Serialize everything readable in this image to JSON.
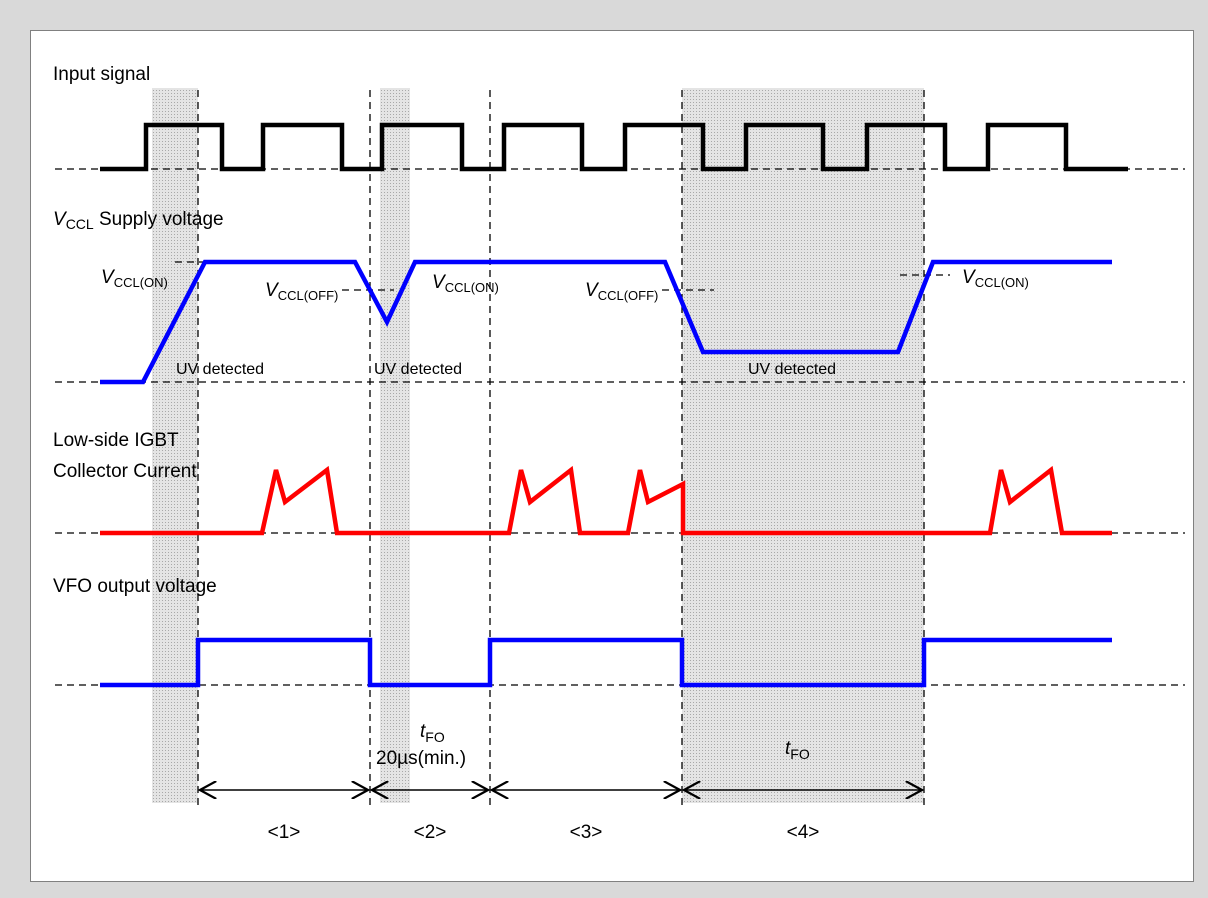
{
  "diagram": {
    "signals": {
      "input": {
        "label": "Input signal"
      },
      "vccl": {
        "label_var": "V",
        "label_sub": "CCL",
        "label_rest": " Supply voltage"
      },
      "collector": {
        "label_line1": "Low-side IGBT",
        "label_line2": "Collector Current"
      },
      "vfo": {
        "label": "VFO output voltage"
      }
    },
    "annotations": {
      "vccl_on": {
        "var": "V",
        "sub": "CCL(ON)"
      },
      "vccl_off": {
        "var": "V",
        "sub": "CCL(OFF)"
      },
      "uv_detected": "UV detected",
      "tfo": {
        "var": "t",
        "sub": "FO"
      },
      "tfo_min": "20µs(min.)"
    },
    "intervals": [
      "<1>",
      "<2>",
      "<3>",
      "<4>"
    ],
    "colors": {
      "input": "#000000",
      "vccl": "#0000ff",
      "collector": "#ff0000",
      "vfo": "#0000ff",
      "shade": "#cfcfcf",
      "background": "#d9d9d9"
    }
  }
}
